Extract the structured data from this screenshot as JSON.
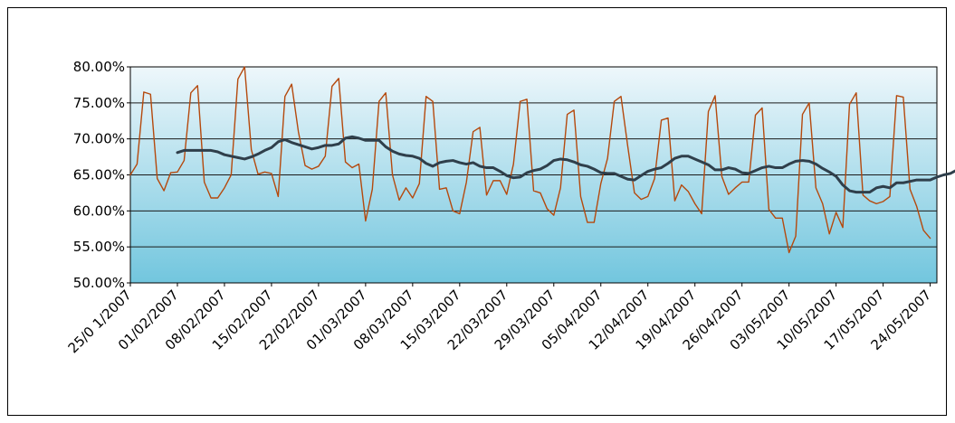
{
  "chart_data": {
    "type": "line",
    "x_tick_labels": [
      "25/0 1/2007",
      "01/02/2007",
      "08/02/2007",
      "15/02/2007",
      "22/02/2007",
      "01/03/2007",
      "08/03/2007",
      "15/03/2007",
      "22/03/2007",
      "29/03/2007",
      "05/04/2007",
      "12/04/2007",
      "19/04/2007",
      "26/04/2007",
      "03/05/2007",
      "10/05/2007",
      "17/05/2007",
      "24/05/2007"
    ],
    "y_tick_labels": [
      "50.00%",
      "55.00%",
      "60.00%",
      "65.00%",
      "70.00%",
      "75.00%",
      "80.00%"
    ],
    "ylim": [
      50,
      80
    ],
    "x_start": "2007-01-25",
    "x_end": "2007-05-25",
    "grid": true,
    "legend": "none",
    "series": [
      {
        "start": "2007-01-25",
        "color": "#b5490d",
        "values": [
          65.0,
          66.5,
          76.5,
          76.2,
          64.5,
          62.8,
          65.3,
          65.4,
          67.0,
          76.4,
          77.4,
          64.0,
          61.8,
          61.8,
          63.2,
          65.0,
          78.3,
          80.0,
          68.5,
          65.1,
          65.4,
          65.2,
          62.0,
          75.9,
          77.6,
          71.0,
          66.3,
          65.8,
          66.2,
          67.6,
          77.3,
          78.4,
          66.8,
          66.0,
          66.5,
          58.6,
          63.0,
          75.2,
          76.4,
          65.0,
          61.5,
          63.2,
          61.8,
          63.8,
          75.9,
          75.2,
          63.0,
          63.2,
          60.0,
          59.6,
          64.0,
          71.0,
          71.6,
          62.2,
          64.2,
          64.2,
          62.3,
          66.5,
          75.2,
          75.5,
          62.8,
          62.5,
          60.3,
          59.4,
          63.2,
          73.4,
          74.0,
          62.0,
          58.4,
          58.4,
          63.8,
          67.3,
          75.2,
          75.9,
          69.0,
          62.5,
          61.6,
          62.0,
          64.5,
          72.6,
          72.9,
          61.4,
          63.6,
          62.7,
          61.0,
          59.6,
          73.8,
          76.0,
          64.8,
          62.3,
          63.2,
          64.0,
          64.0,
          73.3,
          74.3,
          60.2,
          59.0,
          59.0,
          54.2,
          56.5,
          73.4,
          75.0,
          63.2,
          61.0,
          56.8,
          59.8,
          57.7,
          74.8,
          76.4,
          62.2,
          61.4,
          61.0,
          61.3,
          62.0,
          76.0,
          75.8,
          63.0,
          60.6,
          57.3,
          56.2
        ]
      },
      {
        "start": "2007-02-01",
        "color": "#2f3f4b",
        "values": [
          68.1,
          68.4,
          68.4,
          68.4,
          68.4,
          68.4,
          68.2,
          67.8,
          67.6,
          67.4,
          67.2,
          67.5,
          67.9,
          68.4,
          68.8,
          69.6,
          69.9,
          69.5,
          69.2,
          68.9,
          68.6,
          68.8,
          69.1,
          69.1,
          69.3,
          70.1,
          70.3,
          70.1,
          69.8,
          69.8,
          69.8,
          68.9,
          68.3,
          67.9,
          67.7,
          67.6,
          67.3,
          66.6,
          66.2,
          66.7,
          66.9,
          67.0,
          66.7,
          66.5,
          66.7,
          66.2,
          66.0,
          66.0,
          65.5,
          64.9,
          64.6,
          64.7,
          65.3,
          65.6,
          65.8,
          66.3,
          67.0,
          67.2,
          67.1,
          66.8,
          66.4,
          66.2,
          65.8,
          65.3,
          65.2,
          65.2,
          64.8,
          64.4,
          64.3,
          64.9,
          65.5,
          65.8,
          66.0,
          66.6,
          67.3,
          67.6,
          67.6,
          67.2,
          66.8,
          66.4,
          65.7,
          65.7,
          66.0,
          65.8,
          65.3,
          65.2,
          65.6,
          66.0,
          66.2,
          66.0,
          66.0,
          66.5,
          66.9,
          67.0,
          66.9,
          66.5,
          65.9,
          65.4,
          64.8,
          63.6,
          62.8,
          62.6,
          62.6,
          62.6,
          63.2,
          63.4,
          63.2,
          63.9,
          63.9,
          64.1,
          64.3,
          64.3,
          64.3,
          64.7,
          65.0,
          65.2,
          65.7,
          65.7,
          65.7,
          65.7,
          65.7,
          65.7,
          65.3,
          64.6
        ]
      }
    ]
  }
}
